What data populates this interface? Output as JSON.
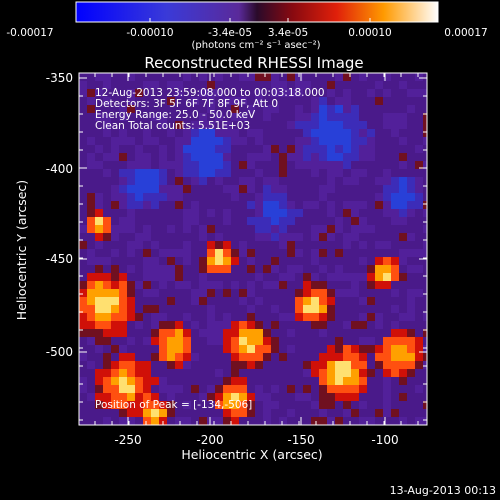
{
  "colorbar": {
    "ticks": [
      "-0.00017",
      "-0.00010",
      "-3.4e-05",
      "3.4e-05",
      "0.00010",
      "0.00017"
    ],
    "units": "(photons cm⁻² s⁻¹ asec⁻²)"
  },
  "plot": {
    "title": "Reconstructed RHESSI Image",
    "info_lines": [
      "12-Aug-2013 23:59:08.000 to 00:03:18.000",
      "Detectors: 3F 5F 6F 7F 8F 9F, Att 0",
      "Energy Range: 25.0 - 50.0 keV",
      "Clean     Total counts: 5.51E+03"
    ],
    "peak_label": "Position of Peak = [-134,-506]",
    "x_axis": {
      "label": "Heliocentric X (arcsec)",
      "ticks": [
        "-250",
        "-200",
        "-150",
        "-100"
      ],
      "range": [
        -275,
        -88
      ]
    },
    "y_axis": {
      "label": "Heliocentric Y (arcsec)",
      "ticks": [
        "-350",
        "-400",
        "-450",
        "-500"
      ],
      "range": [
        -542,
        -347
      ]
    }
  },
  "footer": {
    "timestamp": "13-Aug-2013 00:13"
  }
}
